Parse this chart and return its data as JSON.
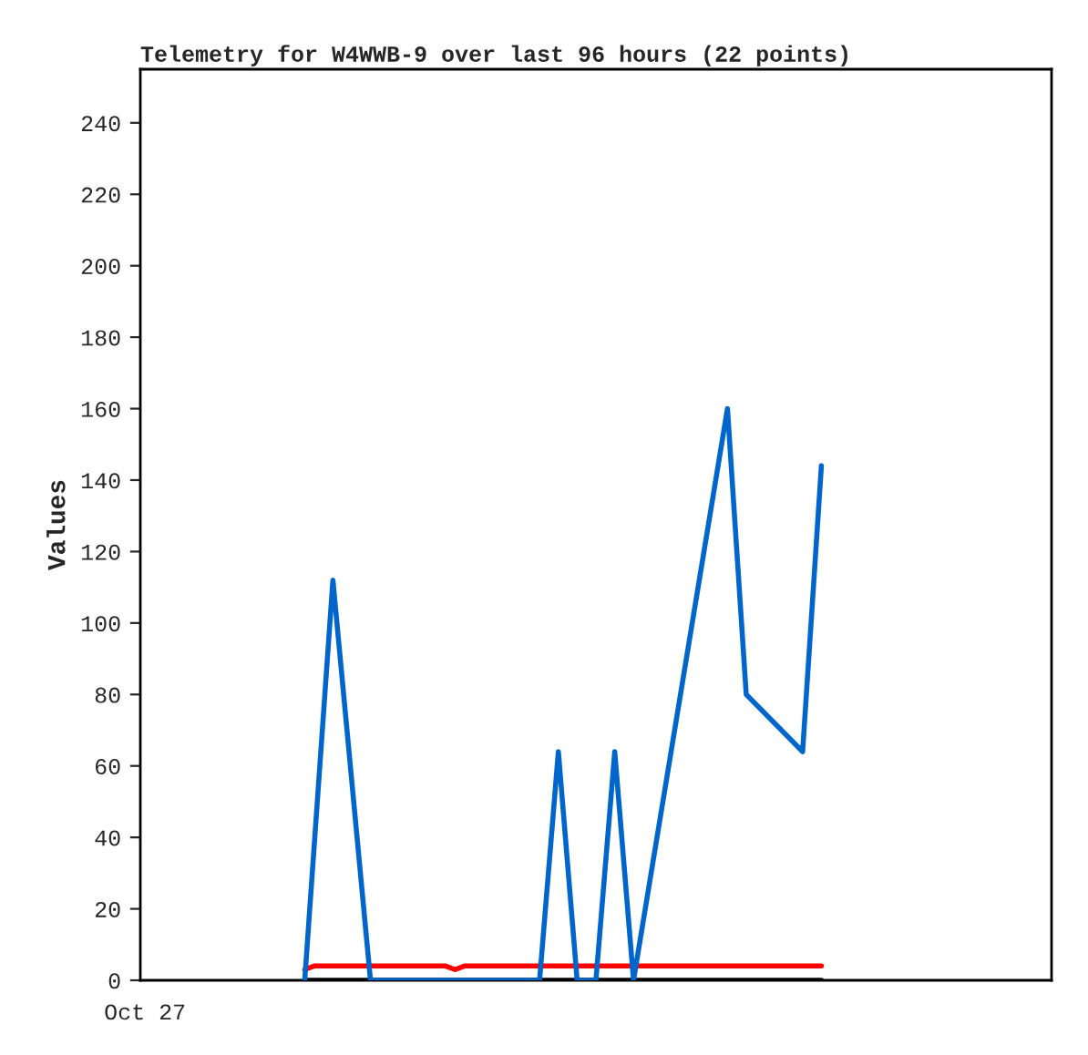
{
  "chart_data": {
    "type": "line",
    "title": "Telemetry for W4WWB-9 over last 96 hours (22 points)",
    "ylabel": "Values",
    "categories": [
      "Oct 27",
      null,
      null,
      null,
      null,
      null,
      null,
      null,
      null,
      null,
      null,
      null,
      null,
      null,
      null,
      null,
      null,
      null,
      null,
      null,
      null,
      null,
      null,
      null,
      null,
      null,
      null,
      null,
      null,
      null,
      null,
      null,
      null,
      null,
      null,
      null,
      null,
      null,
      null,
      null,
      null,
      null,
      null,
      null,
      null,
      null,
      null,
      null,
      null,
      null,
      null,
      null,
      null,
      null,
      null,
      null,
      null,
      null,
      null,
      null,
      null,
      null,
      null,
      null,
      null,
      null,
      null,
      null,
      null,
      null,
      null,
      null,
      null,
      null,
      null,
      null,
      null,
      null,
      null,
      null,
      null,
      null,
      null,
      null,
      null,
      null,
      null,
      null,
      null,
      null,
      null,
      null,
      null,
      null,
      null,
      null,
      null
    ],
    "ylim": [
      0,
      255
    ],
    "yticks": [
      0,
      20,
      40,
      60,
      80,
      100,
      120,
      140,
      160,
      180,
      200,
      220,
      240
    ],
    "series": [
      {
        "color": "#000000",
        "values": [
          null,
          null,
          null,
          null,
          null,
          null,
          null,
          null,
          null,
          null,
          null,
          null,
          null,
          null,
          null,
          null,
          null,
          0,
          null,
          null,
          null,
          null,
          null,
          null,
          null,
          null,
          null,
          null,
          null,
          null,
          null,
          null,
          null,
          null,
          null,
          null,
          null,
          null,
          null,
          null,
          null,
          null,
          null,
          null,
          null,
          null,
          null,
          null,
          null,
          null,
          null,
          null,
          null,
          null,
          null,
          null,
          null,
          null,
          null,
          null,
          null,
          null,
          null,
          null,
          null,
          null,
          null,
          null,
          null,
          null,
          null,
          null,
          0,
          null,
          null,
          null,
          null,
          null,
          null,
          null,
          null,
          null,
          null,
          null,
          null,
          null,
          null,
          null,
          null,
          null,
          null,
          null,
          null,
          null,
          null,
          null,
          null
        ]
      },
      {
        "color": "#ff0000",
        "values": [
          null,
          null,
          null,
          null,
          null,
          null,
          null,
          null,
          null,
          null,
          null,
          null,
          null,
          null,
          null,
          null,
          null,
          3,
          4,
          null,
          null,
          null,
          null,
          null,
          null,
          null,
          null,
          null,
          null,
          null,
          null,
          null,
          4,
          3,
          4,
          null,
          null,
          null,
          null,
          null,
          null,
          null,
          null,
          null,
          null,
          null,
          null,
          null,
          null,
          null,
          null,
          null,
          null,
          null,
          null,
          null,
          null,
          null,
          null,
          null,
          null,
          null,
          null,
          null,
          null,
          null,
          null,
          null,
          null,
          null,
          null,
          null,
          4,
          null,
          null,
          null,
          null,
          null,
          null,
          null,
          null,
          null,
          null,
          null,
          null,
          null,
          null,
          null,
          null,
          null,
          null,
          null,
          null,
          null,
          null,
          null,
          null
        ]
      },
      {
        "color": "#0066cc",
        "values": [
          null,
          null,
          null,
          null,
          null,
          null,
          null,
          null,
          null,
          null,
          null,
          null,
          null,
          null,
          null,
          null,
          null,
          0,
          null,
          null,
          112,
          null,
          null,
          null,
          0,
          null,
          null,
          null,
          null,
          null,
          null,
          null,
          null,
          null,
          null,
          null,
          null,
          null,
          null,
          null,
          null,
          null,
          0,
          null,
          64,
          null,
          0,
          null,
          0,
          null,
          64,
          null,
          0,
          null,
          null,
          null,
          null,
          null,
          null,
          null,
          null,
          null,
          160,
          null,
          80,
          null,
          null,
          null,
          null,
          null,
          64,
          null,
          144,
          null,
          null,
          null,
          null,
          null,
          null,
          null,
          null,
          null,
          null,
          null,
          null,
          null,
          null,
          null,
          null,
          null,
          null,
          null,
          null,
          null,
          null,
          null,
          null
        ]
      }
    ]
  }
}
